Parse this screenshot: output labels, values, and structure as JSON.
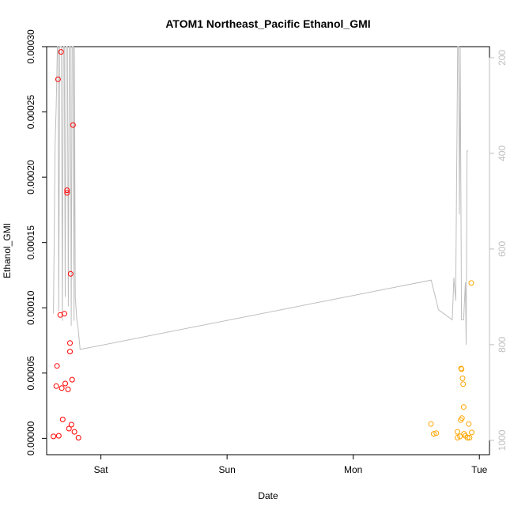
{
  "chart_data": {
    "type": "scatter",
    "title": "ATOM1 Northeast_Pacific Ethanol_GMI",
    "xlabel": "Date",
    "ylabel": "Ethanol_GMI",
    "x_unit": "days since Fri 00:00",
    "x_ticks": [
      {
        "label": "Sat",
        "x": 1.0
      },
      {
        "label": "Sun",
        "x": 2.0
      },
      {
        "label": "Mon",
        "x": 3.0
      },
      {
        "label": "Tue",
        "x": 4.0
      }
    ],
    "xlim": [
      0.57,
      4.08
    ],
    "ylim": [
      -1.25e-05,
      0.0003
    ],
    "y_ticks": [
      0.0,
      5e-05,
      0.0001,
      0.00015,
      0.0002,
      0.00025,
      0.0003
    ],
    "y_tick_labels": [
      "0.00000",
      "0.00005",
      "0.00010",
      "0.00015",
      "0.00020",
      "0.00025",
      "0.00030"
    ],
    "secondary_axis": {
      "label": "",
      "ylim_top": 177,
      "ylim_bottom": 1030,
      "ticks": [
        200,
        400,
        600,
        800,
        1000
      ],
      "color": "#bebebe"
    },
    "series": [
      {
        "color": "#ff0000",
        "marker": "open-circle",
        "points": [
          [
            0.624,
            1.5e-06
          ],
          [
            0.646,
            4e-05
          ],
          [
            0.652,
            5.55e-05
          ],
          [
            0.66,
            0.000275
          ],
          [
            0.666,
            2e-06
          ],
          [
            0.678,
            9.45e-05
          ],
          [
            0.684,
            0.000296
          ],
          [
            0.69,
            3.85e-05
          ],
          [
            0.697,
            1.45e-05
          ],
          [
            0.711,
            9.55e-05
          ],
          [
            0.717,
            4.2e-05
          ],
          [
            0.739,
            3.75e-05
          ],
          [
            0.732,
            0.000188
          ],
          [
            0.732,
            0.00019
          ],
          [
            0.747,
            7.5e-06
          ],
          [
            0.755,
            7.3e-05
          ],
          [
            0.755,
            6.65e-05
          ],
          [
            0.76,
            0.000126
          ],
          [
            0.766,
            1.05e-05
          ],
          [
            0.772,
            4.5e-05
          ],
          [
            0.779,
            0.00024
          ],
          [
            0.79,
            5e-06
          ],
          [
            0.822,
            5e-07
          ]
        ]
      },
      {
        "color": "#ffa500",
        "marker": "open-circle",
        "points": [
          [
            3.616,
            1.1e-05
          ],
          [
            3.638,
            3.5e-06
          ],
          [
            3.659,
            4e-06
          ],
          [
            3.826,
            5e-06
          ],
          [
            3.826,
            5e-07
          ],
          [
            3.846,
            1.5e-06
          ],
          [
            3.852,
            1.4e-05
          ],
          [
            3.855,
            5.35e-05
          ],
          [
            3.859,
            5.3e-05
          ],
          [
            3.862,
            1.55e-05
          ],
          [
            3.866,
            4.6e-05
          ],
          [
            3.871,
            4.15e-05
          ],
          [
            3.875,
            2.4e-05
          ],
          [
            3.878,
            3.5e-06
          ],
          [
            3.889,
            2e-06
          ],
          [
            3.906,
            5e-07
          ],
          [
            3.916,
            1.1e-05
          ],
          [
            3.922,
            5e-07
          ],
          [
            3.939,
            4.5e-06
          ],
          [
            3.936,
            0.000119
          ]
        ]
      },
      {
        "color": "#bebebe",
        "marker": "line",
        "axis": "secondary",
        "points": [
          [
            0.624,
            735
          ],
          [
            0.637,
            380
          ],
          [
            0.646,
            300
          ],
          [
            0.655,
            177
          ],
          [
            0.66,
            177
          ],
          [
            0.666,
            730
          ],
          [
            0.674,
            177
          ],
          [
            0.687,
            177
          ],
          [
            0.694,
            750
          ],
          [
            0.702,
            177
          ],
          [
            0.71,
            177
          ],
          [
            0.717,
            700
          ],
          [
            0.724,
            177
          ],
          [
            0.735,
            177
          ],
          [
            0.742,
            720
          ],
          [
            0.75,
            177
          ],
          [
            0.758,
            177
          ],
          [
            0.765,
            760
          ],
          [
            0.772,
            177
          ],
          [
            0.78,
            177
          ],
          [
            0.787,
            750
          ],
          [
            0.79,
            177
          ],
          [
            0.797,
            700
          ],
          [
            0.808,
            745
          ],
          [
            0.82,
            767
          ],
          [
            0.835,
            810
          ],
          [
            3.618,
            665
          ],
          [
            3.676,
            727
          ],
          [
            3.785,
            748
          ],
          [
            3.798,
            660
          ],
          [
            3.812,
            708
          ],
          [
            3.828,
            177
          ],
          [
            3.835,
            177
          ],
          [
            3.842,
            528
          ],
          [
            3.848,
            177
          ],
          [
            3.858,
            748
          ],
          [
            3.875,
            748
          ],
          [
            3.889,
            670
          ],
          [
            3.895,
            800
          ],
          [
            3.902,
            395
          ],
          [
            3.912,
            395
          ]
        ]
      }
    ],
    "grid": false,
    "legend": "none"
  }
}
